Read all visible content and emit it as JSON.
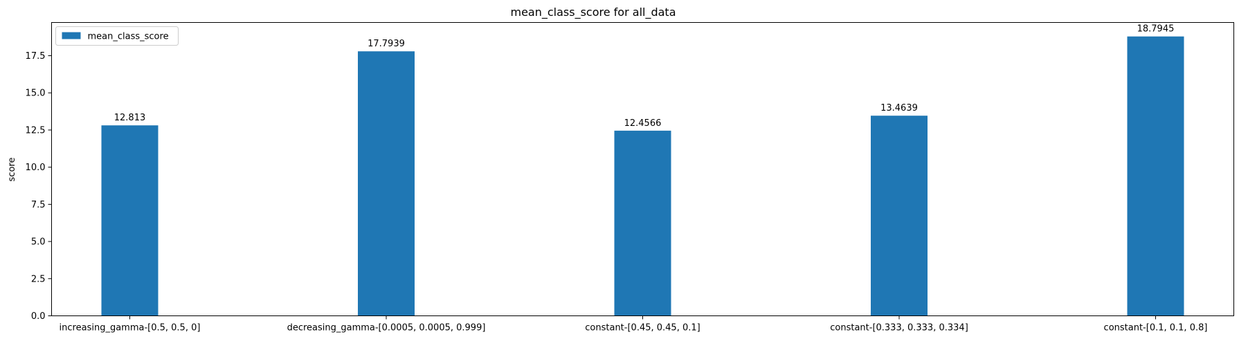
{
  "chart_data": {
    "type": "bar",
    "title": "mean_class_score for all_data",
    "xlabel": "",
    "ylabel": "score",
    "categories": [
      "increasing_gamma-[0.5, 0.5, 0]",
      "decreasing_gamma-[0.0005, 0.0005, 0.999]",
      "constant-[0.45, 0.45, 0.1]",
      "constant-[0.333, 0.333, 0.334]",
      "constant-[0.1, 0.1, 0.8]"
    ],
    "series": [
      {
        "name": "mean_class_score",
        "values": [
          12.813,
          17.7939,
          12.4566,
          13.4639,
          18.7945
        ],
        "labels": [
          "12.813",
          "17.7939",
          "12.4566",
          "13.4639",
          "18.7945"
        ],
        "color": "#1f77b4"
      }
    ],
    "ylim": [
      0,
      19.7342
    ],
    "yticks": [
      0.0,
      2.5,
      5.0,
      7.5,
      10.0,
      12.5,
      15.0,
      17.5
    ],
    "ytick_labels": [
      "0.0",
      "2.5",
      "5.0",
      "7.5",
      "10.0",
      "12.5",
      "15.0",
      "17.5"
    ],
    "grid": false,
    "legend": "top-left"
  }
}
